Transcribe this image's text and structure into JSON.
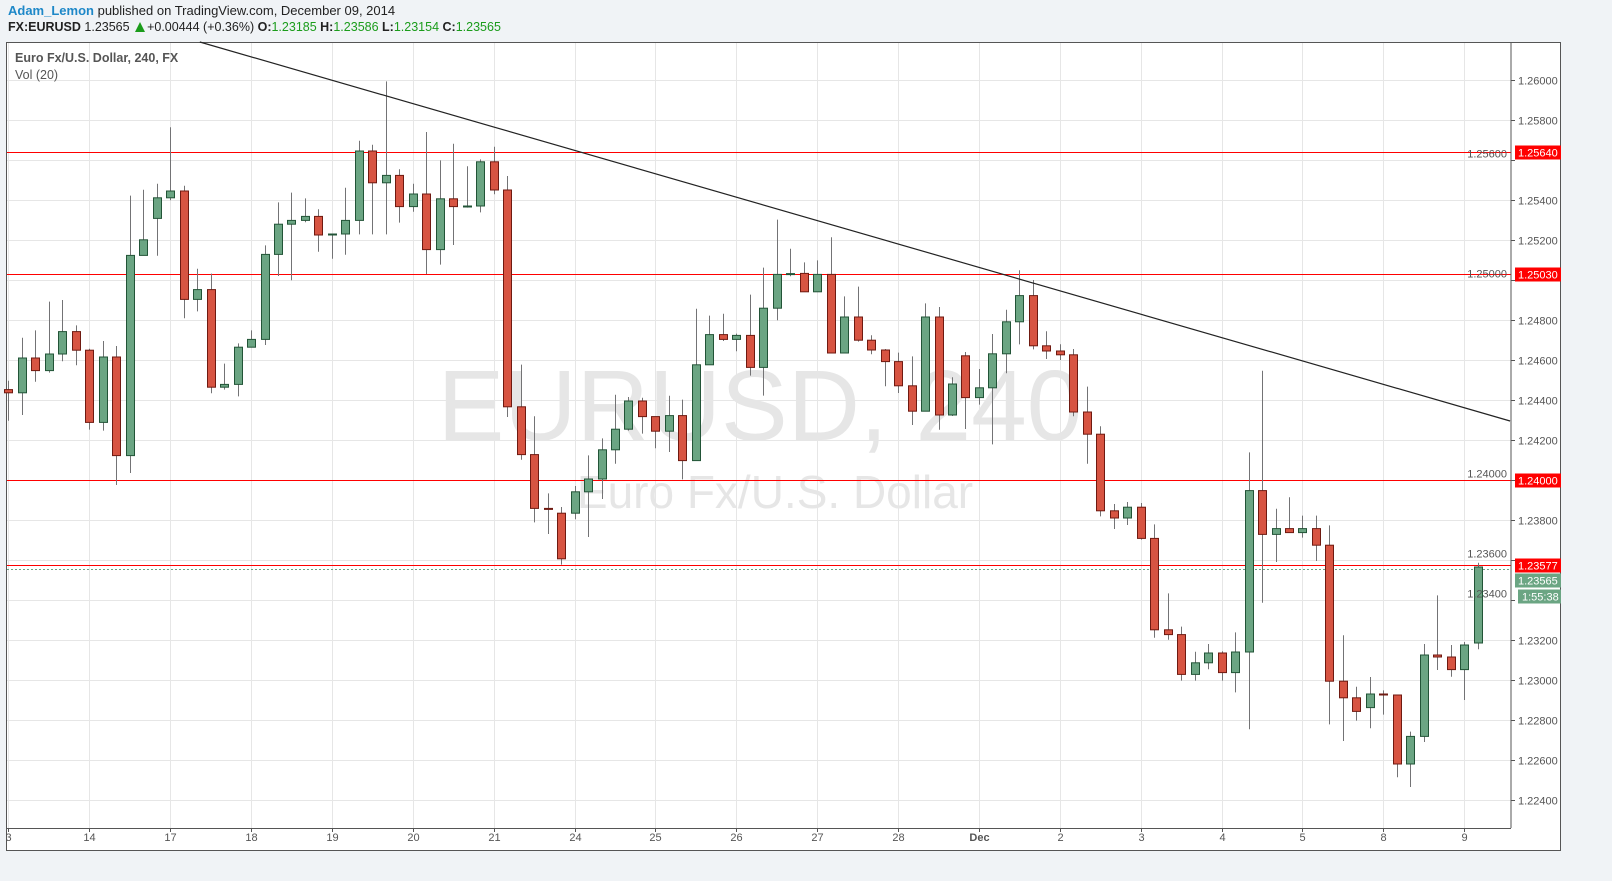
{
  "header": {
    "author": "Adam_Lemon",
    "published_text": "published on TradingView.com, December 09, 2014",
    "symbol": "FX:EURUSD",
    "last": "1.23565",
    "change": "+0.00444 (+0.36%)",
    "open_label": "O:",
    "open": "1.23185",
    "high_label": "H:",
    "high": "1.23586",
    "low_label": "L:",
    "low": "1.23154",
    "close_label": "C:",
    "close": "1.23565",
    "direction_icon": "triangle-up-icon"
  },
  "legend": {
    "title": "Euro Fx/U.S. Dollar, 240, FX",
    "indicator": "Vol (20)"
  },
  "watermark": {
    "line1": "EURUSD, 240",
    "line2": "Euro Fx/U.S. Dollar"
  },
  "colors": {
    "up_fill": "#6ba583",
    "up_border": "#225437",
    "down_fill": "#d75442",
    "down_border": "#6f1a11",
    "wick": "#737375",
    "level_line": "#ff0000",
    "trendline": "#222222",
    "current_price": "#6ba583"
  },
  "chart_data": {
    "type": "candlestick",
    "ohlc_order": [
      "open",
      "high",
      "low",
      "close"
    ],
    "x_tick_labels": [
      "3",
      "14",
      "17",
      "18",
      "19",
      "20",
      "21",
      "24",
      "25",
      "26",
      "27",
      "28",
      "Dec",
      "2",
      "3",
      "4",
      "5",
      "8",
      "9"
    ],
    "candles_per_tick": 6,
    "y_ticks": [
      "1.26000",
      "1.25800",
      "1.25600",
      "1.25400",
      "1.25200",
      "1.25000",
      "1.24800",
      "1.24600",
      "1.24400",
      "1.24200",
      "1.24000",
      "1.23800",
      "1.23600",
      "1.23400",
      "1.23200",
      "1.23000",
      "1.22800",
      "1.22600",
      "1.22400"
    ],
    "ylim": [
      1.2236,
      1.2619
    ],
    "grid": true,
    "horizontal_levels": [
      {
        "value": 1.2564,
        "label": "1.25640"
      },
      {
        "value": 1.2503,
        "label": "1.25030"
      },
      {
        "value": 1.24,
        "label": "1.24000"
      },
      {
        "value": 1.23577,
        "label": "1.23577"
      }
    ],
    "current_price": {
      "value": 1.23565,
      "label": "1.23565",
      "countdown": "1:55:38"
    },
    "trendline": {
      "from": {
        "index": 14.2,
        "price": 1.2619
      },
      "to": {
        "index": 111.4,
        "price": 1.24295
      }
    },
    "candles": [
      [
        1.24452,
        1.24496,
        1.24296,
        1.24436
      ],
      [
        1.24436,
        1.24711,
        1.24325,
        1.2461
      ],
      [
        1.2461,
        1.24748,
        1.24491,
        1.24547
      ],
      [
        1.24547,
        1.24892,
        1.24537,
        1.2463
      ],
      [
        1.2463,
        1.249,
        1.24594,
        1.24742
      ],
      [
        1.24742,
        1.24773,
        1.24574,
        1.24649
      ],
      [
        1.24649,
        1.24656,
        1.24252,
        1.24288
      ],
      [
        1.24288,
        1.24695,
        1.24247,
        1.24615
      ],
      [
        1.24615,
        1.2467,
        1.23975,
        1.24122
      ],
      [
        1.24122,
        1.25422,
        1.24035,
        1.25123
      ],
      [
        1.25123,
        1.25451,
        1.25123,
        1.25201
      ],
      [
        1.25308,
        1.25481,
        1.25121,
        1.25411
      ],
      [
        1.25411,
        1.25764,
        1.25399,
        1.25445
      ],
      [
        1.25445,
        1.25471,
        1.24809,
        1.24903
      ],
      [
        1.24903,
        1.25056,
        1.24843,
        1.24952
      ],
      [
        1.24952,
        1.25032,
        1.24434,
        1.24464
      ],
      [
        1.24464,
        1.24582,
        1.24452,
        1.24478
      ],
      [
        1.24478,
        1.24683,
        1.24418,
        1.24664
      ],
      [
        1.24664,
        1.24748,
        1.24664,
        1.24703
      ],
      [
        1.24703,
        1.25173,
        1.24675,
        1.25128
      ],
      [
        1.25128,
        1.25388,
        1.2502,
        1.25279
      ],
      [
        1.25279,
        1.25437,
        1.24999,
        1.25298
      ],
      [
        1.25298,
        1.25408,
        1.25289,
        1.25318
      ],
      [
        1.25318,
        1.25354,
        1.25141,
        1.25225
      ],
      [
        1.2523,
        1.2523,
        1.25106,
        1.2523
      ],
      [
        1.2523,
        1.25461,
        1.25126,
        1.25298
      ],
      [
        1.25298,
        1.25696,
        1.25228,
        1.25645
      ],
      [
        1.25645,
        1.25676,
        1.25228,
        1.25486
      ],
      [
        1.25486,
        1.25993,
        1.25228,
        1.25523
      ],
      [
        1.25523,
        1.25554,
        1.25287,
        1.25367
      ],
      [
        1.25367,
        1.25481,
        1.25341,
        1.2543
      ],
      [
        1.2543,
        1.2574,
        1.2503,
        1.25152
      ],
      [
        1.25152,
        1.25598,
        1.25077,
        1.25406
      ],
      [
        1.25406,
        1.25681,
        1.25175,
        1.25367
      ],
      [
        1.2537,
        1.25569,
        1.25362,
        1.2537
      ],
      [
        1.2537,
        1.25603,
        1.25338,
        1.25591
      ],
      [
        1.25591,
        1.25666,
        1.25429,
        1.2545
      ],
      [
        1.2545,
        1.2552,
        1.24315,
        1.24366
      ],
      [
        1.24366,
        1.24577,
        1.24101,
        1.24127
      ],
      [
        1.24127,
        1.24319,
        1.23788,
        1.23858
      ],
      [
        1.23858,
        1.23933,
        1.2373,
        1.23856
      ],
      [
        1.23834,
        1.23865,
        1.23577,
        1.23606
      ],
      [
        1.23834,
        1.2397,
        1.23804,
        1.23941
      ],
      [
        1.23941,
        1.24123,
        1.23715,
        1.24005
      ],
      [
        1.24005,
        1.24208,
        1.23905,
        1.24151
      ],
      [
        1.24151,
        1.24426,
        1.24081,
        1.24254
      ],
      [
        1.24254,
        1.24415,
        1.24247,
        1.24395
      ],
      [
        1.24395,
        1.24411,
        1.24232,
        1.24317
      ],
      [
        1.24317,
        1.24317,
        1.24159,
        1.24244
      ],
      [
        1.24244,
        1.24421,
        1.2414,
        1.24322
      ],
      [
        1.24322,
        1.24402,
        1.24003,
        1.24097
      ],
      [
        1.24097,
        1.24856,
        1.24097,
        1.24576
      ],
      [
        1.24576,
        1.24822,
        1.24576,
        1.24727
      ],
      [
        1.24727,
        1.24831,
        1.24695,
        1.24703
      ],
      [
        1.24703,
        1.24732,
        1.24644,
        1.24723
      ],
      [
        1.24723,
        1.24927,
        1.24522,
        1.24563
      ],
      [
        1.24563,
        1.25062,
        1.24422,
        1.24859
      ],
      [
        1.24859,
        1.25302,
        1.24799,
        1.25028
      ],
      [
        1.25028,
        1.25156,
        1.25019,
        1.25032
      ],
      [
        1.25033,
        1.25088,
        1.24941,
        1.24941
      ],
      [
        1.24941,
        1.25098,
        1.24941,
        1.25028
      ],
      [
        1.25028,
        1.25214,
        1.24635,
        1.24635
      ],
      [
        1.24635,
        1.24918,
        1.24635,
        1.24815
      ],
      [
        1.24815,
        1.24967,
        1.24692,
        1.24699
      ],
      [
        1.24699,
        1.24724,
        1.24629,
        1.2465
      ],
      [
        1.2465,
        1.24655,
        1.24469,
        1.24592
      ],
      [
        1.24592,
        1.24637,
        1.24435,
        1.24471
      ],
      [
        1.24471,
        1.24618,
        1.24275,
        1.24344
      ],
      [
        1.24344,
        1.24883,
        1.24344,
        1.24815
      ],
      [
        1.24815,
        1.24865,
        1.24251,
        1.24325
      ],
      [
        1.24325,
        1.24514,
        1.2432,
        1.2448
      ],
      [
        1.24621,
        1.2464,
        1.24255,
        1.24412
      ],
      [
        1.24412,
        1.24555,
        1.24377,
        1.24461
      ],
      [
        1.24461,
        1.2473,
        1.24178,
        1.24631
      ],
      [
        1.24631,
        1.24851,
        1.24534,
        1.24791
      ],
      [
        1.24791,
        1.25049,
        1.24678,
        1.24922
      ],
      [
        1.24922,
        1.25,
        1.24653,
        1.24671
      ],
      [
        1.24671,
        1.24744,
        1.24605,
        1.24645
      ],
      [
        1.24645,
        1.24679,
        1.246,
        1.24626
      ],
      [
        1.24626,
        1.24655,
        1.24319,
        1.2434
      ],
      [
        1.2434,
        1.24467,
        1.24081,
        1.24229
      ],
      [
        1.24229,
        1.24269,
        1.23818,
        1.23846
      ],
      [
        1.23846,
        1.2388,
        1.23755,
        1.2381
      ],
      [
        1.2381,
        1.2389,
        1.23775,
        1.23864
      ],
      [
        1.23864,
        1.23885,
        1.23702,
        1.23708
      ],
      [
        1.23708,
        1.23778,
        1.23211,
        1.23251
      ],
      [
        1.23251,
        1.23433,
        1.23201,
        1.23227
      ],
      [
        1.23227,
        1.23267,
        1.22997,
        1.23028
      ],
      [
        1.23028,
        1.23141,
        1.22997,
        1.23086
      ],
      [
        1.23086,
        1.2318,
        1.23054,
        1.23135
      ],
      [
        1.23135,
        1.23144,
        1.22997,
        1.23037
      ],
      [
        1.23037,
        1.23238,
        1.22938,
        1.2314
      ],
      [
        1.2314,
        1.24138,
        1.22754,
        1.23947
      ],
      [
        1.23947,
        1.24546,
        1.23386,
        1.23728
      ],
      [
        1.23728,
        1.23856,
        1.2359,
        1.23757
      ],
      [
        1.23757,
        1.23914,
        1.23737,
        1.23737
      ],
      [
        1.23737,
        1.23822,
        1.23712,
        1.23757
      ],
      [
        1.23757,
        1.23822,
        1.23595,
        1.23674
      ],
      [
        1.23674,
        1.23773,
        1.22778,
        1.22994
      ],
      [
        1.22994,
        1.23224,
        1.22695,
        1.22911
      ],
      [
        1.22911,
        1.22966,
        1.22797,
        1.22843
      ],
      [
        1.22862,
        1.23015,
        1.22759,
        1.2293
      ],
      [
        1.2293,
        1.22948,
        1.22827,
        1.22929
      ],
      [
        1.22925,
        1.22925,
        1.22514,
        1.2258
      ],
      [
        1.2258,
        1.22742,
        1.22465,
        1.22718
      ],
      [
        1.22718,
        1.2318,
        1.2269,
        1.23125
      ],
      [
        1.23125,
        1.23423,
        1.2305,
        1.23115
      ],
      [
        1.23115,
        1.23175,
        1.23016,
        1.23052
      ],
      [
        1.23052,
        1.2319,
        1.229,
        1.23175
      ],
      [
        1.23185,
        1.23586,
        1.23154,
        1.23565
      ]
    ]
  }
}
